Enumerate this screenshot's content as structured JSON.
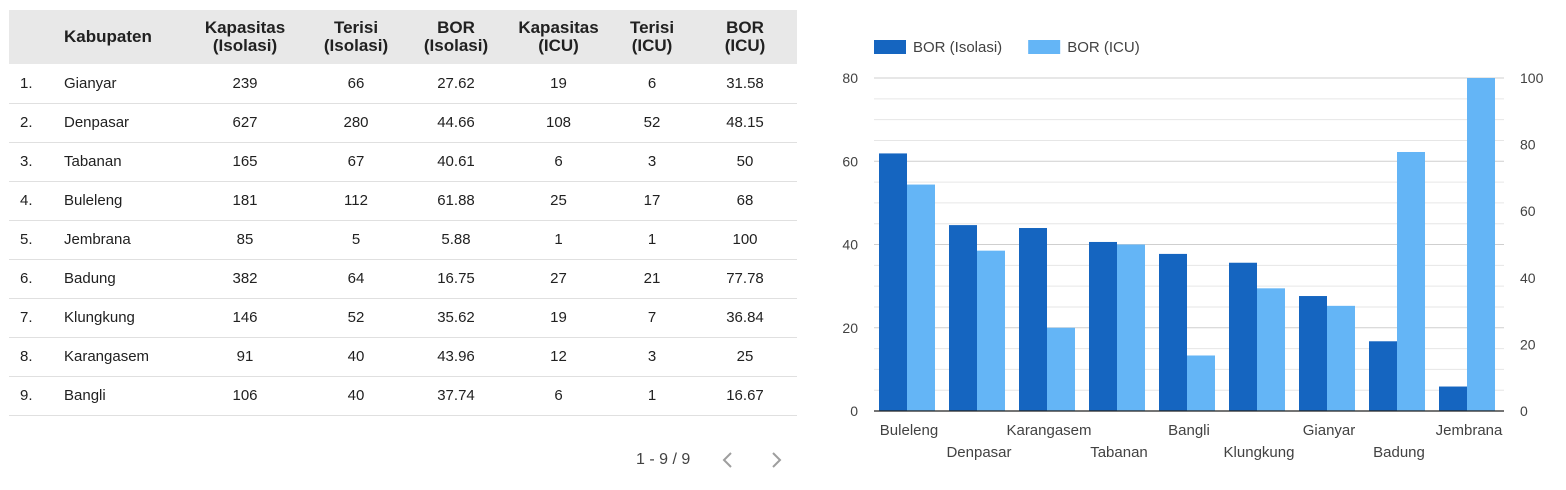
{
  "table": {
    "headers": [
      {
        "line1": "",
        "line2": ""
      },
      {
        "line1": "Kabupaten",
        "line2": ""
      },
      {
        "line1": "Kapasitas",
        "line2": "(Isolasi)"
      },
      {
        "line1": "Terisi",
        "line2": "(Isolasi)"
      },
      {
        "line1": "BOR",
        "line2": "(Isolasi)"
      },
      {
        "line1": "Kapasitas",
        "line2": "(ICU)"
      },
      {
        "line1": "Terisi",
        "line2": "(ICU)"
      },
      {
        "line1": "BOR",
        "line2": "(ICU)"
      }
    ],
    "rows": [
      [
        "1.",
        "Gianyar",
        "239",
        "66",
        "27.62",
        "19",
        "6",
        "31.58"
      ],
      [
        "2.",
        "Denpasar",
        "627",
        "280",
        "44.66",
        "108",
        "52",
        "48.15"
      ],
      [
        "3.",
        "Tabanan",
        "165",
        "67",
        "40.61",
        "6",
        "3",
        "50"
      ],
      [
        "4.",
        "Buleleng",
        "181",
        "112",
        "61.88",
        "25",
        "17",
        "68"
      ],
      [
        "5.",
        "Jembrana",
        "85",
        "5",
        "5.88",
        "1",
        "1",
        "100"
      ],
      [
        "6.",
        "Badung",
        "382",
        "64",
        "16.75",
        "27",
        "21",
        "77.78"
      ],
      [
        "7.",
        "Klungkung",
        "146",
        "52",
        "35.62",
        "19",
        "7",
        "36.84"
      ],
      [
        "8.",
        "Karangasem",
        "91",
        "40",
        "43.96",
        "12",
        "3",
        "25"
      ],
      [
        "9.",
        "Bangli",
        "106",
        "40",
        "37.74",
        "6",
        "1",
        "16.67"
      ]
    ]
  },
  "pagination": {
    "range": "1 - 9 / 9",
    "prev_icon": "chevron-left-icon",
    "next_icon": "chevron-right-icon",
    "icon_color": "#9e9e9e"
  },
  "chart_data": {
    "type": "bar",
    "categories": [
      "Buleleng",
      "Denpasar",
      "Karangasem",
      "Tabanan",
      "Bangli",
      "Klungkung",
      "Gianyar",
      "Badung",
      "Jembrana"
    ],
    "series": [
      {
        "name": "BOR (Isolasi)",
        "axis": "left",
        "color": "#1565c0",
        "values": [
          61.88,
          44.66,
          43.96,
          40.61,
          37.74,
          35.62,
          27.62,
          16.75,
          5.88
        ]
      },
      {
        "name": "BOR (ICU)",
        "axis": "right",
        "color": "#64b5f6",
        "values": [
          68,
          48.15,
          25,
          50,
          16.67,
          36.84,
          31.58,
          77.78,
          100
        ]
      }
    ],
    "y_left": {
      "ylim": [
        0,
        80
      ],
      "ticks": [
        0,
        20,
        40,
        60,
        80
      ]
    },
    "y_right": {
      "ylim": [
        0,
        100
      ],
      "ticks": [
        0,
        20,
        40,
        60,
        80,
        100
      ]
    },
    "legend_position": "top-left",
    "grid": true,
    "title": "",
    "xlabel": "",
    "ylabel": ""
  }
}
